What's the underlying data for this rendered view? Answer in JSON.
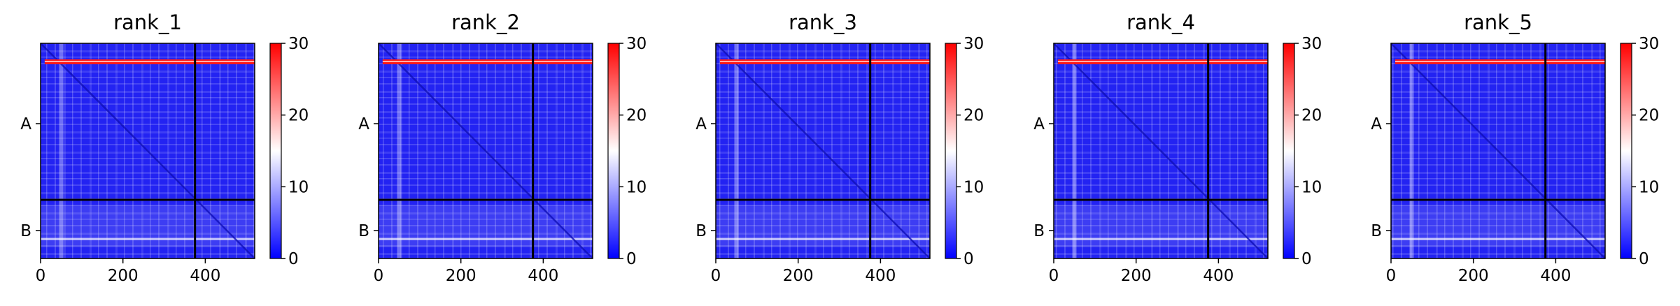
{
  "chart_data": [
    {
      "type": "heatmap",
      "title": "rank_1",
      "xticks": [
        0,
        200,
        400
      ],
      "xlim": [
        0,
        520
      ],
      "ytick_labels": [
        "A",
        "B"
      ],
      "boundary_x": 375,
      "colorbar": {
        "ticks": [
          0,
          10,
          20,
          30
        ],
        "range": [
          0,
          30
        ],
        "colors": [
          "#0000ff",
          "#ffffff",
          "#ff0000"
        ]
      }
    },
    {
      "type": "heatmap",
      "title": "rank_2",
      "xticks": [
        0,
        200,
        400
      ],
      "xlim": [
        0,
        520
      ],
      "ytick_labels": [
        "A",
        "B"
      ],
      "boundary_x": 375,
      "colorbar": {
        "ticks": [
          0,
          10,
          20,
          30
        ],
        "range": [
          0,
          30
        ],
        "colors": [
          "#0000ff",
          "#ffffff",
          "#ff0000"
        ]
      }
    },
    {
      "type": "heatmap",
      "title": "rank_3",
      "xticks": [
        0,
        200,
        400
      ],
      "xlim": [
        0,
        520
      ],
      "ytick_labels": [
        "A",
        "B"
      ],
      "boundary_x": 375,
      "colorbar": {
        "ticks": [
          0,
          10,
          20,
          30
        ],
        "range": [
          0,
          30
        ],
        "colors": [
          "#0000ff",
          "#ffffff",
          "#ff0000"
        ]
      }
    },
    {
      "type": "heatmap",
      "title": "rank_4",
      "xticks": [
        0,
        200,
        400
      ],
      "xlim": [
        0,
        520
      ],
      "ytick_labels": [
        "A",
        "B"
      ],
      "boundary_x": 375,
      "colorbar": {
        "ticks": [
          0,
          10,
          20,
          30
        ],
        "range": [
          0,
          30
        ],
        "colors": [
          "#0000ff",
          "#ffffff",
          "#ff0000"
        ]
      }
    },
    {
      "type": "heatmap",
      "title": "rank_5",
      "xticks": [
        0,
        200,
        400
      ],
      "xlim": [
        0,
        520
      ],
      "ytick_labels": [
        "A",
        "B"
      ],
      "boundary_x": 375,
      "colorbar": {
        "ticks": [
          0,
          10,
          20,
          30
        ],
        "range": [
          0,
          30
        ],
        "colors": [
          "#0000ff",
          "#ffffff",
          "#ff0000"
        ]
      }
    }
  ]
}
